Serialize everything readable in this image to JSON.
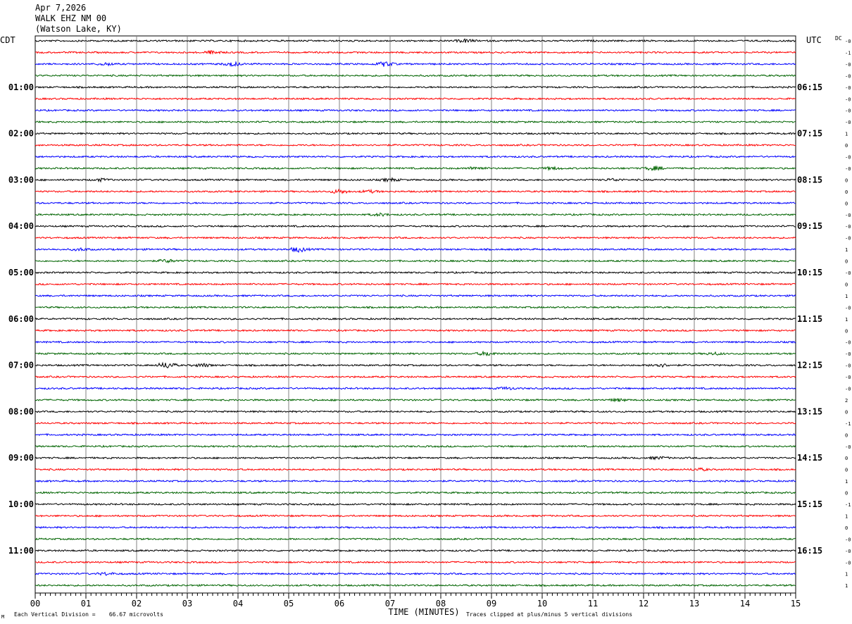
{
  "header": {
    "date": "Apr 7,2026",
    "station": "WALK EHZ NM 00",
    "location": "(Watson Lake, KY)"
  },
  "footer": {
    "vertical_division": "Each Vertical Division =    66.67 microvolts",
    "clip_note": "Traces clipped at plus/minus 5 vertical divisions",
    "corner_mark": "M"
  },
  "colors": {
    "trace_cycle": [
      "#000000",
      "#ff0000",
      "#0000ff",
      "#006400"
    ],
    "grid": "#808080",
    "frame": "#000000"
  },
  "chart_data": {
    "type": "line",
    "subtype": "helicorder",
    "title": "",
    "xlabel": "TIME (MINUTES)",
    "left_axis_label": "CDT",
    "right_axis_label": "UTC",
    "dc_label": "DC",
    "xlim": [
      0,
      15
    ],
    "x_ticks": [
      "00",
      "01",
      "02",
      "03",
      "04",
      "05",
      "06",
      "07",
      "08",
      "09",
      "10",
      "11",
      "12",
      "13",
      "14",
      "15"
    ],
    "minutes_per_line": 15,
    "line_count": 48,
    "left_time_labels": [
      {
        "line": 4,
        "label": "01:00"
      },
      {
        "line": 8,
        "label": "02:00"
      },
      {
        "line": 12,
        "label": "03:00"
      },
      {
        "line": 16,
        "label": "04:00"
      },
      {
        "line": 20,
        "label": "05:00"
      },
      {
        "line": 24,
        "label": "06:00"
      },
      {
        "line": 28,
        "label": "07:00"
      },
      {
        "line": 32,
        "label": "08:00"
      },
      {
        "line": 36,
        "label": "09:00"
      },
      {
        "line": 40,
        "label": "10:00"
      },
      {
        "line": 44,
        "label": "11:00"
      }
    ],
    "right_time_labels": [
      {
        "line": 4,
        "label": "06:15"
      },
      {
        "line": 8,
        "label": "07:15"
      },
      {
        "line": 12,
        "label": "08:15"
      },
      {
        "line": 16,
        "label": "09:15"
      },
      {
        "line": 20,
        "label": "10:15"
      },
      {
        "line": 24,
        "label": "11:15"
      },
      {
        "line": 28,
        "label": "12:15"
      },
      {
        "line": 32,
        "label": "13:15"
      },
      {
        "line": 36,
        "label": "14:15"
      },
      {
        "line": 40,
        "label": "15:15"
      },
      {
        "line": 44,
        "label": "16:15"
      }
    ],
    "dc_offsets": [
      "-0",
      "-1",
      "-0",
      "-0",
      "-0",
      "-0",
      "-0",
      "-0",
      "1",
      "0",
      "-0",
      "-0",
      "0",
      "0",
      "0",
      "-0",
      "-0",
      "-0",
      "1",
      "0",
      "-0",
      "0",
      "1",
      "-0",
      "1",
      "0",
      "-0",
      "-0",
      "-0",
      "-0",
      "-0",
      "2",
      "0",
      "-1",
      "0",
      "-0",
      "0",
      "0",
      "1",
      "0",
      "-1",
      "1",
      "0",
      "-0",
      "-0",
      "-0",
      "1",
      "1"
    ],
    "events": [
      {
        "line": 0,
        "minute": 8.5,
        "amp": 2
      },
      {
        "line": 1,
        "minute": 3.5,
        "amp": 2
      },
      {
        "line": 2,
        "minute": 1.4,
        "amp": 1.5
      },
      {
        "line": 2,
        "minute": 3.9,
        "amp": 2.5
      },
      {
        "line": 2,
        "minute": 6.9,
        "amp": 3
      },
      {
        "line": 11,
        "minute": 8.7,
        "amp": 2
      },
      {
        "line": 11,
        "minute": 12.2,
        "amp": 2.5
      },
      {
        "line": 11,
        "minute": 10.2,
        "amp": 1.5
      },
      {
        "line": 12,
        "minute": 1.3,
        "amp": 1.5
      },
      {
        "line": 12,
        "minute": 7.0,
        "amp": 1.8
      },
      {
        "line": 12,
        "minute": 11.4,
        "amp": 1.5
      },
      {
        "line": 13,
        "minute": 6.0,
        "amp": 2.5
      },
      {
        "line": 13,
        "minute": 6.6,
        "amp": 1.5
      },
      {
        "line": 15,
        "minute": 6.8,
        "amp": 1.5
      },
      {
        "line": 18,
        "minute": 5.2,
        "amp": 3
      },
      {
        "line": 18,
        "minute": 0.9,
        "amp": 1.5
      },
      {
        "line": 19,
        "minute": 2.6,
        "amp": 2
      },
      {
        "line": 27,
        "minute": 8.9,
        "amp": 2.5
      },
      {
        "line": 27,
        "minute": 13.4,
        "amp": 1.5
      },
      {
        "line": 28,
        "minute": 2.6,
        "amp": 4
      },
      {
        "line": 28,
        "minute": 3.3,
        "amp": 2
      },
      {
        "line": 28,
        "minute": 12.3,
        "amp": 2.5
      },
      {
        "line": 30,
        "minute": 9.3,
        "amp": 1.5
      },
      {
        "line": 31,
        "minute": 11.5,
        "amp": 1.5
      },
      {
        "line": 36,
        "minute": 12.3,
        "amp": 1.5
      },
      {
        "line": 37,
        "minute": 13.1,
        "amp": 1.5
      },
      {
        "line": 46,
        "minute": 1.4,
        "amp": 1.5
      }
    ]
  }
}
